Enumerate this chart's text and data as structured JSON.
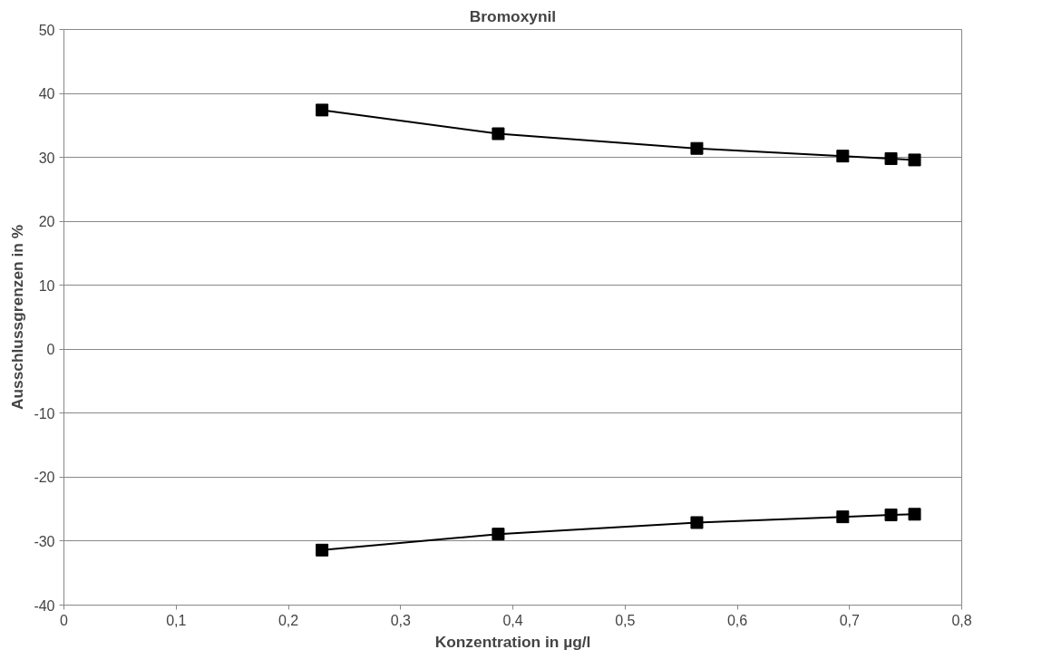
{
  "chart_data": {
    "type": "line",
    "title": "Bromoxynil",
    "xlabel": "Konzentration in µg/l",
    "ylabel": "Ausschlussgrenzen in %",
    "x": [
      0.23,
      0.387,
      0.564,
      0.694,
      0.737,
      0.758
    ],
    "series": [
      {
        "color": "#000000",
        "values": [
          37.4,
          33.7,
          31.4,
          30.2,
          29.8,
          29.6
        ]
      },
      {
        "color": "#000000",
        "values": [
          -31.4,
          -28.9,
          -27.1,
          -26.2,
          -25.9,
          -25.8
        ]
      }
    ],
    "xlim": [
      0,
      0.8
    ],
    "ylim": [
      -40,
      50
    ],
    "xticks": [
      0,
      {
        "value": 0.1,
        "label": "0,1"
      },
      {
        "value": 0.2,
        "label": "0,2"
      },
      {
        "value": 0.3,
        "label": "0,3"
      },
      {
        "value": 0.4,
        "label": "0,4"
      },
      {
        "value": 0.5,
        "label": "0,5"
      },
      {
        "value": 0.6,
        "label": "0,6"
      },
      {
        "value": 0.7,
        "label": "0,7"
      },
      {
        "value": 0.8,
        "label": "0,8"
      }
    ],
    "yticks": [
      -40,
      -30,
      -20,
      -10,
      0,
      10,
      20,
      30,
      40,
      50
    ],
    "grid": "y",
    "marker": "square",
    "line_style": "solid"
  }
}
